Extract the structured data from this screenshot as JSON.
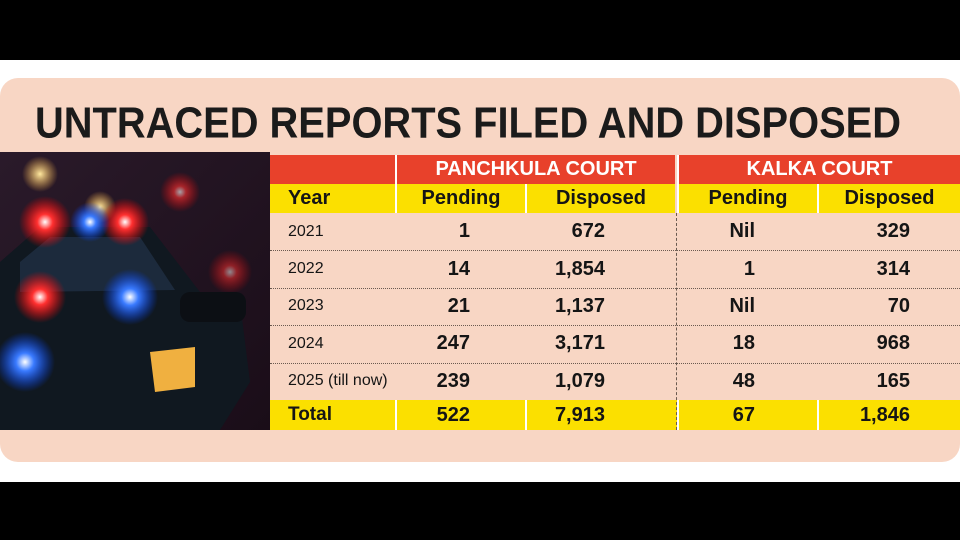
{
  "header": {
    "title": "UNTRACED REPORTS FILED AND DISPOSED"
  },
  "table": {
    "groups": [
      "PANCHKULA COURT",
      "KALKA COURT"
    ],
    "columns": [
      "Year",
      "Pending",
      "Disposed",
      "Pending",
      "Disposed"
    ],
    "rows": [
      [
        "2021",
        "1",
        "672",
        "Nil",
        "329"
      ],
      [
        "2022",
        "14",
        "1,854",
        "1",
        "314"
      ],
      [
        "2023",
        "21",
        "1,137",
        "Nil",
        "70"
      ],
      [
        "2024",
        "247",
        "3,171",
        "18",
        "968"
      ],
      [
        "2025 (till now)",
        "239",
        "1,079",
        "48",
        "165"
      ]
    ],
    "total": [
      "Total",
      "522",
      "7,913",
      "67",
      "1,846"
    ]
  }
}
